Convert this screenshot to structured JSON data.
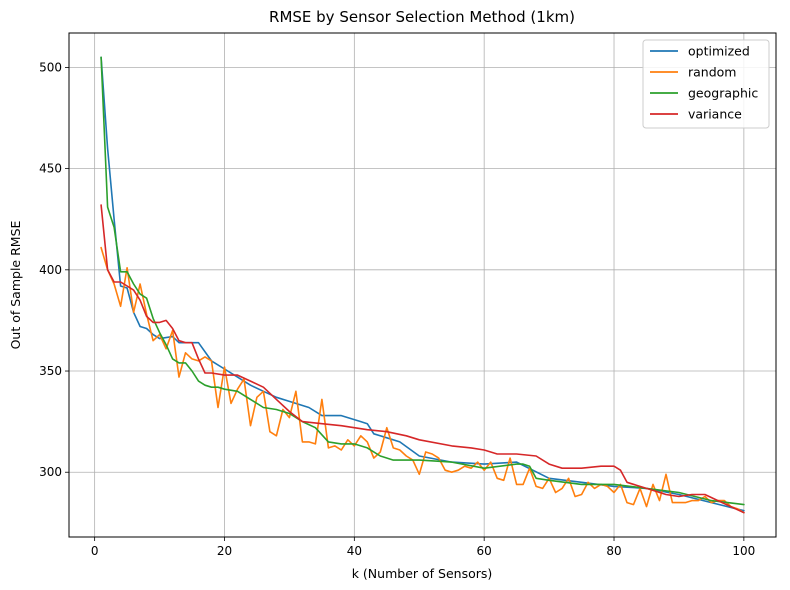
{
  "chart_data": {
    "type": "line",
    "title": "RMSE by Sensor Selection Method (1km)",
    "xlabel": "k (Number of Sensors)",
    "ylabel": "Out of Sample RMSE",
    "xlim": [
      -3.95,
      104.95
    ],
    "ylim": [
      268,
      517
    ],
    "xticks": [
      0,
      20,
      40,
      60,
      80,
      100
    ],
    "yticks": [
      300,
      350,
      400,
      450,
      500
    ],
    "grid": true,
    "legend_position": "top-right",
    "series": [
      {
        "name": "optimized",
        "color": "#1f77b4",
        "x": [
          1,
          2,
          3,
          4,
          5,
          6,
          7,
          8,
          9,
          10,
          12,
          13,
          15,
          16,
          18,
          20,
          22,
          24,
          26,
          28,
          30,
          33,
          35,
          38,
          40,
          41,
          42,
          43,
          45,
          47,
          50,
          55,
          60,
          65,
          70,
          75,
          80,
          85,
          90,
          95,
          100
        ],
        "y": [
          505,
          460,
          425,
          392,
          391,
          379,
          372,
          371,
          368,
          366,
          367,
          364,
          364,
          364,
          355,
          351,
          347,
          343,
          340,
          337,
          335,
          332,
          328,
          328,
          326,
          325,
          324,
          319,
          317,
          315,
          308,
          305,
          304,
          305,
          297,
          295,
          293,
          292,
          289,
          285,
          281
        ]
      },
      {
        "name": "random",
        "color": "#ff7f0e",
        "x": [
          1,
          2,
          3,
          4,
          5,
          6,
          7,
          8,
          9,
          10,
          11,
          12,
          13,
          14,
          15,
          16,
          17,
          18,
          19,
          20,
          21,
          22,
          23,
          24,
          25,
          26,
          27,
          28,
          29,
          30,
          31,
          32,
          33,
          34,
          35,
          36,
          37,
          38,
          39,
          40,
          41,
          42,
          43,
          44,
          45,
          46,
          47,
          48,
          49,
          50,
          51,
          52,
          53,
          54,
          55,
          56,
          57,
          58,
          59,
          60,
          61,
          62,
          63,
          64,
          65,
          66,
          67,
          68,
          69,
          70,
          71,
          72,
          73,
          74,
          75,
          76,
          77,
          78,
          79,
          80,
          81,
          82,
          83,
          84,
          85,
          86,
          87,
          88,
          89,
          90,
          91,
          92,
          93,
          94,
          95,
          96,
          97,
          98,
          99,
          100
        ],
        "y": [
          411,
          400,
          393,
          382,
          401,
          379,
          393,
          378,
          365,
          368,
          361,
          370,
          347,
          359,
          356,
          355,
          357,
          355,
          332,
          352,
          334,
          341,
          346,
          323,
          337,
          340,
          320,
          318,
          331,
          327,
          340,
          315,
          315,
          314,
          336,
          312,
          313,
          311,
          316,
          313,
          318,
          315,
          307,
          310,
          322,
          312,
          311,
          308,
          306,
          299,
          310,
          309,
          307,
          301,
          300,
          301,
          303,
          302,
          305,
          301,
          305,
          297,
          296,
          307,
          294,
          294,
          302,
          293,
          292,
          297,
          290,
          292,
          297,
          288,
          289,
          295,
          292,
          294,
          293,
          290,
          294,
          285,
          284,
          292,
          283,
          294,
          286,
          299,
          285,
          285,
          285,
          286,
          286,
          288,
          285,
          286,
          286,
          283,
          282,
          280
        ]
      },
      {
        "name": "geographic",
        "color": "#2ca02c",
        "x": [
          1,
          2,
          3,
          4,
          5,
          6,
          7,
          8,
          9,
          10,
          11,
          12,
          13,
          14,
          15,
          16,
          17,
          18,
          19,
          20,
          22,
          24,
          26,
          28,
          30,
          32,
          34,
          36,
          38,
          40,
          42,
          44,
          46,
          48,
          50,
          55,
          60,
          65,
          66,
          67,
          68,
          70,
          75,
          80,
          85,
          90,
          95,
          100
        ],
        "y": [
          505,
          431,
          421,
          399,
          399,
          393,
          388,
          386,
          376,
          369,
          363,
          356,
          354,
          354,
          350,
          345,
          343,
          342,
          342,
          341,
          340,
          336,
          332,
          331,
          329,
          325,
          322,
          315,
          314,
          314,
          312,
          308,
          306,
          306,
          306,
          305,
          302,
          304,
          304,
          303,
          297,
          296,
          294,
          294,
          292,
          290,
          286,
          284
        ]
      },
      {
        "name": "variance",
        "color": "#d62728",
        "x": [
          1,
          2,
          3,
          4,
          5,
          6,
          7,
          8,
          9,
          10,
          11,
          12,
          13,
          14,
          15,
          16,
          17,
          18,
          20,
          22,
          24,
          26,
          28,
          30,
          32,
          35,
          38,
          40,
          42,
          45,
          48,
          50,
          55,
          58,
          60,
          62,
          65,
          68,
          70,
          72,
          75,
          78,
          80,
          81,
          82,
          84,
          86,
          88,
          90,
          92,
          94,
          96,
          100
        ],
        "y": [
          432,
          400,
          394,
          394,
          392,
          390,
          385,
          377,
          374,
          374,
          375,
          371,
          365,
          364,
          364,
          356,
          349,
          349,
          348,
          348,
          345,
          342,
          336,
          330,
          325,
          324,
          323,
          322,
          321,
          320,
          318,
          316,
          313,
          312,
          311,
          309,
          309,
          308,
          304,
          302,
          302,
          303,
          303,
          301,
          295,
          293,
          291,
          289,
          288,
          289,
          289,
          286,
          280
        ]
      }
    ]
  }
}
